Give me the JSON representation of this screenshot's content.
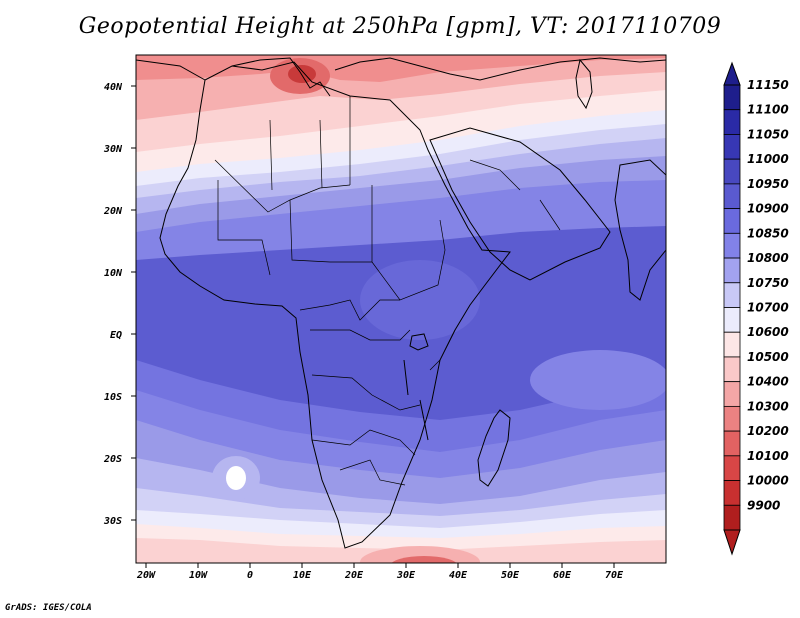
{
  "title": "Geopotential Height at 250hPa [gpm], VT: 2017110709",
  "credit": "GrADS: IGES/COLA",
  "lat_ticks": [
    "40N",
    "30N",
    "20N",
    "10N",
    "EQ",
    "10S",
    "20S",
    "30S"
  ],
  "lon_ticks": [
    "20W",
    "10W",
    "0",
    "10E",
    "20E",
    "30E",
    "40E",
    "50E",
    "60E",
    "70E"
  ],
  "colorbar": {
    "levels": [
      "11150",
      "11100",
      "11050",
      "11000",
      "10950",
      "10900",
      "10850",
      "10800",
      "10750",
      "10700",
      "10600",
      "10500",
      "10400",
      "10300",
      "10200",
      "10100",
      "10000",
      "9900"
    ],
    "colors": [
      "#1e1e8c",
      "#2a2aa6",
      "#3737b4",
      "#4848c0",
      "#5a5ad0",
      "#6a6ade",
      "#8282e8",
      "#a2a2f0",
      "#c8c8f6",
      "#ececfc",
      "#fde6e6",
      "#fac8c8",
      "#f4a6a6",
      "#ec8282",
      "#e26262",
      "#d84646",
      "#c83030",
      "#b01e1e"
    ]
  },
  "map": {
    "extent": {
      "lon": [
        -22,
        80
      ],
      "lat": [
        -36,
        44
      ]
    },
    "band_colors": [
      "#c83a3a",
      "#e26a6a",
      "#f08e8e",
      "#f6b0b0",
      "#fbd2d2",
      "#fdeaea",
      "#ececfc",
      "#d2d2f6",
      "#b6b6f0",
      "#9a9ae8",
      "#8484e6",
      "#7474e0",
      "#6868d8",
      "#5c5cd0"
    ]
  }
}
